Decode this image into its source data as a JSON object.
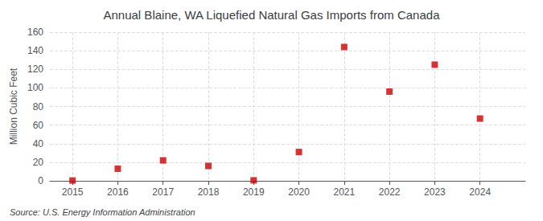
{
  "chart_data": {
    "type": "scatter",
    "title": "Annual Blaine, WA Liquefied Natural Gas Imports from Canada",
    "ylabel": "Million Cubic Feet",
    "source": "Source: U.S. Energy Information Administration",
    "x": [
      2015,
      2016,
      2017,
      2018,
      2019,
      2020,
      2021,
      2022,
      2023,
      2024
    ],
    "values": [
      0.3,
      13,
      22,
      16,
      0.5,
      31,
      144,
      96,
      125,
      67
    ],
    "color": "#cc0000",
    "marker": "square",
    "xlim": [
      2014.5,
      2025.0
    ],
    "xticks": [
      2015,
      2016,
      2017,
      2018,
      2019,
      2020,
      2021,
      2022,
      2023,
      2024
    ],
    "ylim": [
      0,
      160
    ],
    "yticks": [
      0,
      20,
      40,
      60,
      80,
      100,
      120,
      140,
      160
    ],
    "grid": true
  }
}
